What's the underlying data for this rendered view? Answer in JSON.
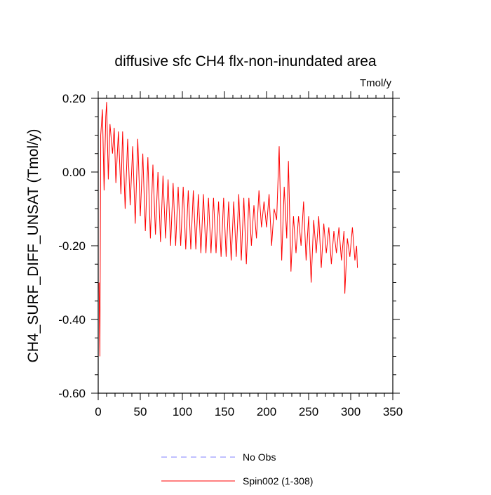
{
  "chart_data": {
    "type": "line",
    "title": "diffusive sfc CH4 flx-non-inundated area",
    "units_label": "Tmol/y",
    "y_label": "CH4_SURF_DIFF_UNSAT  (Tmol/y)",
    "xlim": [
      0,
      350
    ],
    "xticks": [
      0,
      50,
      100,
      150,
      200,
      250,
      300,
      350
    ],
    "ylim": [
      -0.6,
      0.2
    ],
    "yticks": [
      {
        "value": -0.6,
        "label": "-0.60"
      },
      {
        "value": -0.4,
        "label": "-0.40"
      },
      {
        "value": -0.2,
        "label": "-0.20"
      },
      {
        "value": 0,
        "label": "0.00"
      },
      {
        "value": 0.2,
        "label": "0.20"
      }
    ],
    "series": [
      {
        "name": "No Obs",
        "color": "#8080ff",
        "dashed": true,
        "x": [],
        "values": []
      },
      {
        "name": "Spin002 (1-308)",
        "color": "#ff0000",
        "dashed": false,
        "x": [
          1,
          2,
          3,
          5,
          7,
          9,
          10,
          12,
          14,
          17,
          19,
          21,
          24,
          27,
          29,
          32,
          35,
          38,
          41,
          44,
          47,
          50,
          53,
          56,
          59,
          62,
          65,
          68,
          71,
          74,
          77,
          80,
          83,
          86,
          89,
          92,
          95,
          98,
          101,
          104,
          107,
          110,
          113,
          116,
          119,
          122,
          125,
          128,
          131,
          134,
          137,
          140,
          143,
          146,
          149,
          152,
          155,
          158,
          161,
          164,
          167,
          170,
          173,
          176,
          179,
          182,
          185,
          188,
          191,
          194,
          197,
          200,
          203,
          206,
          209,
          212,
          215,
          218,
          221,
          224,
          226,
          229,
          232,
          235,
          238,
          241,
          244,
          247,
          250,
          253,
          256,
          259,
          262,
          265,
          268,
          271,
          274,
          277,
          280,
          283,
          286,
          289,
          292,
          293,
          296,
          299,
          302,
          305,
          307,
          308
        ],
        "values": [
          -0.3,
          -0.5,
          0.1,
          0.17,
          -0.05,
          0.15,
          0.19,
          -0.02,
          0.13,
          0.05,
          0.12,
          -0.03,
          0.11,
          -0.06,
          0.11,
          -0.1,
          0.09,
          -0.09,
          0.07,
          -0.14,
          0.09,
          -0.12,
          0.05,
          -0.16,
          0.04,
          -0.18,
          0.02,
          -0.17,
          0.0,
          -0.19,
          -0.01,
          -0.18,
          -0.02,
          -0.2,
          -0.03,
          -0.2,
          -0.04,
          -0.2,
          -0.04,
          -0.21,
          -0.05,
          -0.21,
          -0.05,
          -0.21,
          -0.06,
          -0.22,
          -0.06,
          -0.22,
          -0.07,
          -0.22,
          -0.07,
          -0.22,
          -0.08,
          -0.23,
          -0.07,
          -0.23,
          -0.08,
          -0.24,
          -0.08,
          -0.23,
          -0.06,
          -0.24,
          -0.07,
          -0.25,
          -0.07,
          -0.2,
          -0.09,
          -0.18,
          -0.05,
          -0.15,
          -0.08,
          -0.15,
          -0.06,
          -0.2,
          -0.1,
          -0.13,
          0.07,
          -0.24,
          -0.04,
          -0.18,
          0.03,
          -0.27,
          -0.12,
          -0.22,
          -0.12,
          -0.2,
          -0.08,
          -0.24,
          -0.12,
          -0.3,
          -0.13,
          -0.22,
          -0.12,
          -0.26,
          -0.14,
          -0.22,
          -0.15,
          -0.25,
          -0.16,
          -0.22,
          -0.15,
          -0.24,
          -0.16,
          -0.33,
          -0.18,
          -0.23,
          -0.15,
          -0.24,
          -0.2,
          -0.26
        ]
      }
    ]
  }
}
